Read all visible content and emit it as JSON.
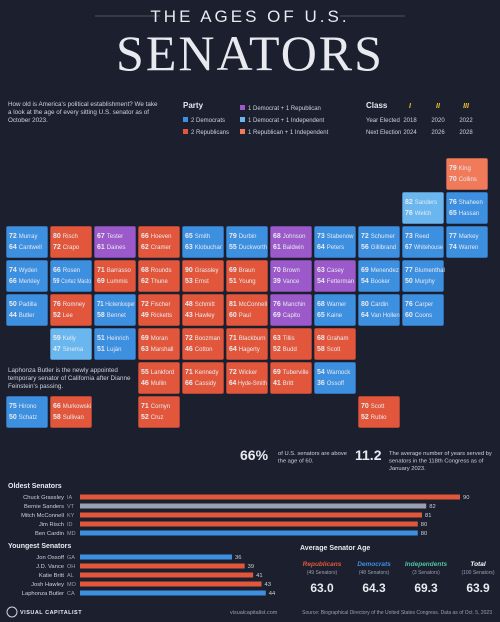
{
  "header": {
    "pretitle": "THE AGES OF U.S.",
    "title": "SENATORS"
  },
  "intro": "How old is America's political establishment? We take a look at the age of every sitting U.S. senator as of October 2023.",
  "party_legend": {
    "title": "Party",
    "items": [
      {
        "label": "2 Democrats",
        "color": "#3d8fe0"
      },
      {
        "label": "2 Republicans",
        "color": "#e2573b"
      },
      {
        "label": "1 Democrat + 1 Republican",
        "color": "#9b59c9"
      },
      {
        "label": "1 Democrat + 1 Independent",
        "color": "#6ab7f0"
      },
      {
        "label": "1 Republican + 1 Independent",
        "color": "#f07a5a"
      }
    ]
  },
  "class_table": {
    "title": "Class",
    "headers": [
      "I",
      "II",
      "III"
    ],
    "rows": [
      {
        "label": "Year Elected",
        "values": [
          "2018",
          "2020",
          "2022"
        ]
      },
      {
        "label": "Next Election",
        "values": [
          "2024",
          "2026",
          "2028"
        ]
      }
    ]
  },
  "states": [
    {
      "color": "#3d8fe0",
      "senators": [
        {
          "age": "72",
          "name": "Murray"
        },
        {
          "age": "64",
          "name": "Cantwell"
        }
      ]
    },
    {
      "color": "#3d8fe0",
      "senators": [
        {
          "age": "74",
          "name": "Wyden"
        },
        {
          "age": "66",
          "name": "Merkley"
        }
      ]
    },
    {
      "color": "#3d8fe0",
      "senators": [
        {
          "age": "50",
          "name": "Padilla"
        },
        {
          "age": "44",
          "name": "Butler"
        }
      ]
    },
    {
      "color": "#3d8fe0",
      "senators": [
        {
          "age": "66",
          "name": "Rosen"
        },
        {
          "age": "59",
          "name": "Cortez Masto"
        }
      ]
    },
    {
      "color": "#e2573b",
      "senators": [
        {
          "age": "80",
          "name": "Risch"
        },
        {
          "age": "72",
          "name": "Crapo"
        }
      ]
    },
    {
      "color": "#9b59c9",
      "senators": [
        {
          "age": "67",
          "name": "Tester"
        },
        {
          "age": "61",
          "name": "Daines"
        }
      ]
    },
    {
      "color": "#e2573b",
      "senators": [
        {
          "age": "71",
          "name": "Barrasso"
        },
        {
          "age": "69",
          "name": "Lummis"
        }
      ]
    },
    {
      "color": "#e2573b",
      "senators": [
        {
          "age": "76",
          "name": "Romney"
        },
        {
          "age": "52",
          "name": "Lee"
        }
      ]
    },
    {
      "color": "#6ab7f0",
      "senators": [
        {
          "age": "59",
          "name": "Kelly"
        },
        {
          "age": "47",
          "name": "Sinema"
        }
      ]
    },
    {
      "color": "#3d8fe0",
      "senators": [
        {
          "age": "71",
          "name": "Hickenlooper"
        },
        {
          "age": "58",
          "name": "Bennet"
        }
      ]
    },
    {
      "color": "#3d8fe0",
      "senators": [
        {
          "age": "51",
          "name": "Heinrich"
        },
        {
          "age": "51",
          "name": "Luján"
        }
      ]
    },
    {
      "color": "#e2573b",
      "senators": [
        {
          "age": "66",
          "name": "Hoeven"
        },
        {
          "age": "62",
          "name": "Cramer"
        }
      ]
    },
    {
      "color": "#e2573b",
      "senators": [
        {
          "age": "68",
          "name": "Rounds"
        },
        {
          "age": "62",
          "name": "Thune"
        }
      ]
    },
    {
      "color": "#e2573b",
      "senators": [
        {
          "age": "72",
          "name": "Fischer"
        },
        {
          "age": "49",
          "name": "Ricketts"
        }
      ]
    },
    {
      "color": "#e2573b",
      "senators": [
        {
          "age": "69",
          "name": "Moran"
        },
        {
          "age": "63",
          "name": "Marshall"
        }
      ]
    },
    {
      "color": "#e2573b",
      "senators": [
        {
          "age": "55",
          "name": "Lankford"
        },
        {
          "age": "46",
          "name": "Mullin"
        }
      ]
    },
    {
      "color": "#e2573b",
      "senators": [
        {
          "age": "71",
          "name": "Cornyn"
        },
        {
          "age": "52",
          "name": "Cruz"
        }
      ]
    },
    {
      "color": "#3d8fe0",
      "senators": [
        {
          "age": "65",
          "name": "Smith"
        },
        {
          "age": "63",
          "name": "Klobuchar"
        }
      ]
    },
    {
      "color": "#e2573b",
      "senators": [
        {
          "age": "90",
          "name": "Grassley"
        },
        {
          "age": "53",
          "name": "Ernst"
        }
      ]
    },
    {
      "color": "#e2573b",
      "senators": [
        {
          "age": "48",
          "name": "Schmitt"
        },
        {
          "age": "43",
          "name": "Hawley"
        }
      ]
    },
    {
      "color": "#e2573b",
      "senators": [
        {
          "age": "72",
          "name": "Boozman"
        },
        {
          "age": "46",
          "name": "Cotton"
        }
      ]
    },
    {
      "color": "#e2573b",
      "senators": [
        {
          "age": "71",
          "name": "Kennedy"
        },
        {
          "age": "66",
          "name": "Cassidy"
        }
      ]
    },
    {
      "color": "#3d8fe0",
      "senators": [
        {
          "age": "79",
          "name": "Durbin"
        },
        {
          "age": "55",
          "name": "Duckworth"
        }
      ]
    },
    {
      "color": "#9b59c9",
      "senators": [
        {
          "age": "68",
          "name": "Johnson"
        },
        {
          "age": "61",
          "name": "Baldwin"
        }
      ]
    },
    {
      "color": "#3d8fe0",
      "senators": [
        {
          "age": "73",
          "name": "Stabenow"
        },
        {
          "age": "64",
          "name": "Peters"
        }
      ]
    },
    {
      "color": "#e2573b",
      "senators": [
        {
          "age": "69",
          "name": "Braun"
        },
        {
          "age": "51",
          "name": "Young"
        }
      ]
    },
    {
      "color": "#9b59c9",
      "senators": [
        {
          "age": "70",
          "name": "Brown"
        },
        {
          "age": "39",
          "name": "Vance"
        }
      ]
    },
    {
      "color": "#e2573b",
      "senators": [
        {
          "age": "81",
          "name": "McConnell"
        },
        {
          "age": "60",
          "name": "Paul"
        }
      ]
    },
    {
      "color": "#e2573b",
      "senators": [
        {
          "age": "71",
          "name": "Blackburn"
        },
        {
          "age": "64",
          "name": "Hagerty"
        }
      ]
    },
    {
      "color": "#e2573b",
      "senators": [
        {
          "age": "72",
          "name": "Wicker"
        },
        {
          "age": "64",
          "name": "Hyde-Smith"
        }
      ]
    },
    {
      "color": "#e2573b",
      "senators": [
        {
          "age": "69",
          "name": "Tuberville"
        },
        {
          "age": "41",
          "name": "Britt"
        }
      ]
    },
    {
      "color": "#3d8fe0",
      "senators": [
        {
          "age": "54",
          "name": "Warnock"
        },
        {
          "age": "36",
          "name": "Ossoff"
        }
      ]
    },
    {
      "color": "#e2573b",
      "senators": [
        {
          "age": "70",
          "name": "Scott"
        },
        {
          "age": "52",
          "name": "Rubio"
        }
      ]
    },
    {
      "color": "#e2573b",
      "senators": [
        {
          "age": "68",
          "name": "Graham"
        },
        {
          "age": "58",
          "name": "Scott"
        }
      ]
    },
    {
      "color": "#e2573b",
      "senators": [
        {
          "age": "63",
          "name": "Tillis"
        },
        {
          "age": "52",
          "name": "Budd"
        }
      ]
    },
    {
      "color": "#3d8fe0",
      "senators": [
        {
          "age": "68",
          "name": "Warner"
        },
        {
          "age": "65",
          "name": "Kaine"
        }
      ]
    },
    {
      "color": "#9b59c9",
      "senators": [
        {
          "age": "76",
          "name": "Manchin"
        },
        {
          "age": "69",
          "name": "Capito"
        }
      ]
    },
    {
      "color": "#9b59c9",
      "senators": [
        {
          "age": "63",
          "name": "Casey"
        },
        {
          "age": "54",
          "name": "Fetterman"
        }
      ]
    },
    {
      "color": "#3d8fe0",
      "senators": [
        {
          "age": "72",
          "name": "Schumer"
        },
        {
          "age": "56",
          "name": "Gillibrand"
        }
      ]
    },
    {
      "color": "#6ab7f0",
      "senators": [
        {
          "age": "82",
          "name": "Sanders"
        },
        {
          "age": "76",
          "name": "Welch"
        }
      ]
    },
    {
      "color": "#3d8fe0",
      "senators": [
        {
          "age": "76",
          "name": "Shaheen"
        },
        {
          "age": "65",
          "name": "Hassan"
        }
      ]
    },
    {
      "color": "#f07a5a",
      "senators": [
        {
          "age": "79",
          "name": "King"
        },
        {
          "age": "70",
          "name": "Collins"
        }
      ]
    },
    {
      "color": "#3d8fe0",
      "senators": [
        {
          "age": "77",
          "name": "Markey"
        },
        {
          "age": "74",
          "name": "Warren"
        }
      ]
    },
    {
      "color": "#3d8fe0",
      "senators": [
        {
          "age": "73",
          "name": "Reed"
        },
        {
          "age": "67",
          "name": "Whitehouse"
        }
      ]
    },
    {
      "color": "#3d8fe0",
      "senators": [
        {
          "age": "77",
          "name": "Blumenthal"
        },
        {
          "age": "50",
          "name": "Murphy"
        }
      ]
    },
    {
      "color": "#3d8fe0",
      "senators": [
        {
          "age": "69",
          "name": "Menendez"
        },
        {
          "age": "54",
          "name": "Booker"
        }
      ]
    },
    {
      "color": "#3d8fe0",
      "senators": [
        {
          "age": "76",
          "name": "Carper"
        },
        {
          "age": "60",
          "name": "Coons"
        }
      ]
    },
    {
      "color": "#3d8fe0",
      "senators": [
        {
          "age": "80",
          "name": "Cardin"
        },
        {
          "age": "64",
          "name": "Van Hollen"
        }
      ]
    },
    {
      "color": "#e2573b",
      "senators": [
        {
          "age": "66",
          "name": "Murkowski"
        },
        {
          "age": "58",
          "name": "Sullivan"
        }
      ]
    },
    {
      "color": "#3d8fe0",
      "senators": [
        {
          "age": "75",
          "name": "Hirono"
        },
        {
          "age": "50",
          "name": "Schatz"
        }
      ]
    }
  ],
  "annotation": "Laphonza Butler is the newly appointed temporary senator of California after Dianne Feinstein's passing.",
  "stats": [
    {
      "value": "66%",
      "text": "of U.S. senators are above the age of 60."
    },
    {
      "value": "11.2",
      "text": "The average number of years served by senators in the 118th Congress as of January 2023."
    }
  ],
  "chart_data": [
    {
      "type": "bar",
      "title": "Oldest Senators",
      "categories": [
        "Chuck Grassley",
        "Bernie Sanders",
        "Mitch McConnell",
        "Jim Risch",
        "Ben Cardin"
      ],
      "states": [
        "IA",
        "VT",
        "KY",
        "ID",
        "MD"
      ],
      "values": [
        90,
        82,
        81,
        80,
        80
      ],
      "colors": [
        "#e2573b",
        "#9aa0ad",
        "#e2573b",
        "#e2573b",
        "#3d8fe0"
      ],
      "xlim": [
        0,
        90
      ]
    },
    {
      "type": "bar",
      "title": "Youngest Senators",
      "categories": [
        "Jon Ossoff",
        "J.D. Vance",
        "Katie Britt",
        "Josh Hawley",
        "Laphonza Butler"
      ],
      "states": [
        "GA",
        "OH",
        "AL",
        "MO",
        "CA"
      ],
      "values": [
        36,
        39,
        41,
        43,
        44
      ],
      "colors": [
        "#3d8fe0",
        "#e2573b",
        "#e2573b",
        "#e2573b",
        "#3d8fe0"
      ],
      "xlim": [
        0,
        90
      ]
    }
  ],
  "averages": {
    "title": "Average Senator Age",
    "items": [
      {
        "label": "Republicans",
        "note": "(49 Senators)",
        "value": "63.0",
        "color": "#e2573b"
      },
      {
        "label": "Democrats",
        "note": "(48 Senators)",
        "value": "64.3",
        "color": "#3d8fe0"
      },
      {
        "label": "Independents",
        "note": "(3 Senators)",
        "value": "69.3",
        "color": "#4fc3a1"
      },
      {
        "label": "Total",
        "note": "(100 Senators)",
        "value": "63.9",
        "color": "#ffffff"
      }
    ]
  },
  "footer": {
    "brand": "VISUAL CAPITALIST",
    "site": "visualcapitalist.com",
    "source": "Source: Biographical Directory of the United States Congress. Data as of Oct. 5, 2023"
  }
}
